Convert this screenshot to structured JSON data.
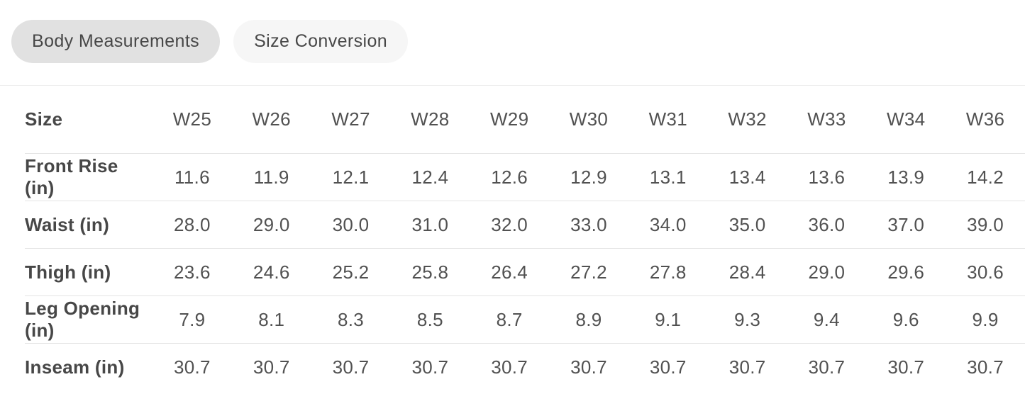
{
  "tabs": [
    {
      "label": "Body Measurements",
      "active": true
    },
    {
      "label": "Size Conversion",
      "active": false
    }
  ],
  "table": {
    "header": [
      "Size",
      "W25",
      "W26",
      "W27",
      "W28",
      "W29",
      "W30",
      "W31",
      "W32",
      "W33",
      "W34",
      "W36"
    ],
    "rows": [
      {
        "label": "Front Rise (in)",
        "values": [
          "11.6",
          "11.9",
          "12.1",
          "12.4",
          "12.6",
          "12.9",
          "13.1",
          "13.4",
          "13.6",
          "13.9",
          "14.2"
        ]
      },
      {
        "label": "Waist (in)",
        "values": [
          "28.0",
          "29.0",
          "30.0",
          "31.0",
          "32.0",
          "33.0",
          "34.0",
          "35.0",
          "36.0",
          "37.0",
          "39.0"
        ]
      },
      {
        "label": "Thigh (in)",
        "values": [
          "23.6",
          "24.6",
          "25.2",
          "25.8",
          "26.4",
          "27.2",
          "27.8",
          "28.4",
          "29.0",
          "29.6",
          "30.6"
        ]
      },
      {
        "label": "Leg Opening (in)",
        "values": [
          "7.9",
          "8.1",
          "8.3",
          "8.5",
          "8.7",
          "8.9",
          "9.1",
          "9.3",
          "9.4",
          "9.6",
          "9.9"
        ]
      },
      {
        "label": "Inseam (in)",
        "values": [
          "30.7",
          "30.7",
          "30.7",
          "30.7",
          "30.7",
          "30.7",
          "30.7",
          "30.7",
          "30.7",
          "30.7",
          "30.7"
        ]
      }
    ]
  },
  "colors": {
    "tab_active_bg": "#e1e1e1",
    "tab_inactive_bg": "#f6f6f6",
    "text": "#474747",
    "border": "#e3e3e3"
  }
}
